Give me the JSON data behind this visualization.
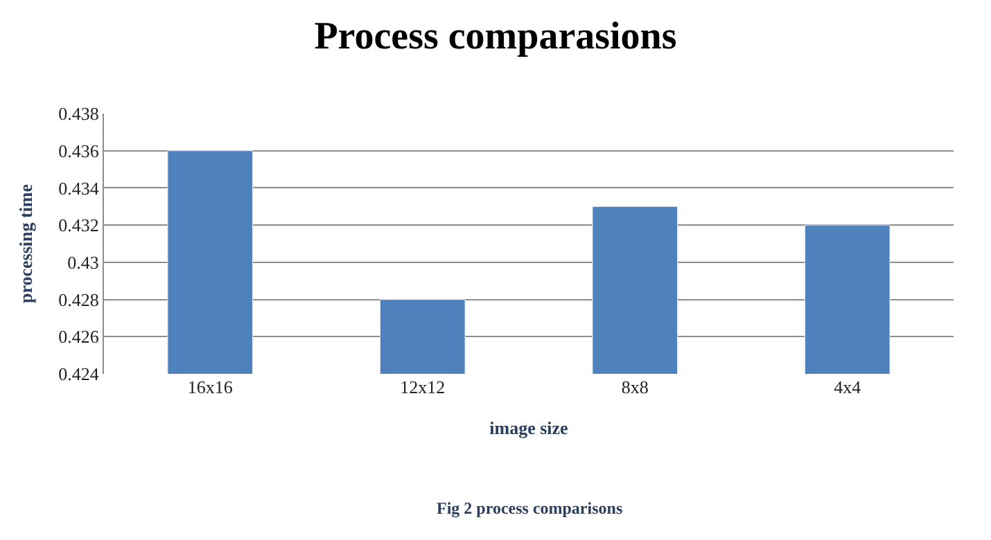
{
  "chart_data": {
    "type": "bar",
    "title": "Process comparasions",
    "xlabel": "image size",
    "ylabel": "processing time",
    "categories": [
      "16x16",
      "12x12",
      "8x8",
      "4x4"
    ],
    "values": [
      0.436,
      0.428,
      0.433,
      0.432
    ],
    "color": "#4f81bd",
    "ylim": [
      0.424,
      0.438
    ],
    "yticks": [
      0.424,
      0.426,
      0.428,
      0.43,
      0.432,
      0.434,
      0.436,
      0.438
    ],
    "grid": "y",
    "legend": false,
    "annotations": [
      "Fig 2 process comparisons"
    ]
  }
}
